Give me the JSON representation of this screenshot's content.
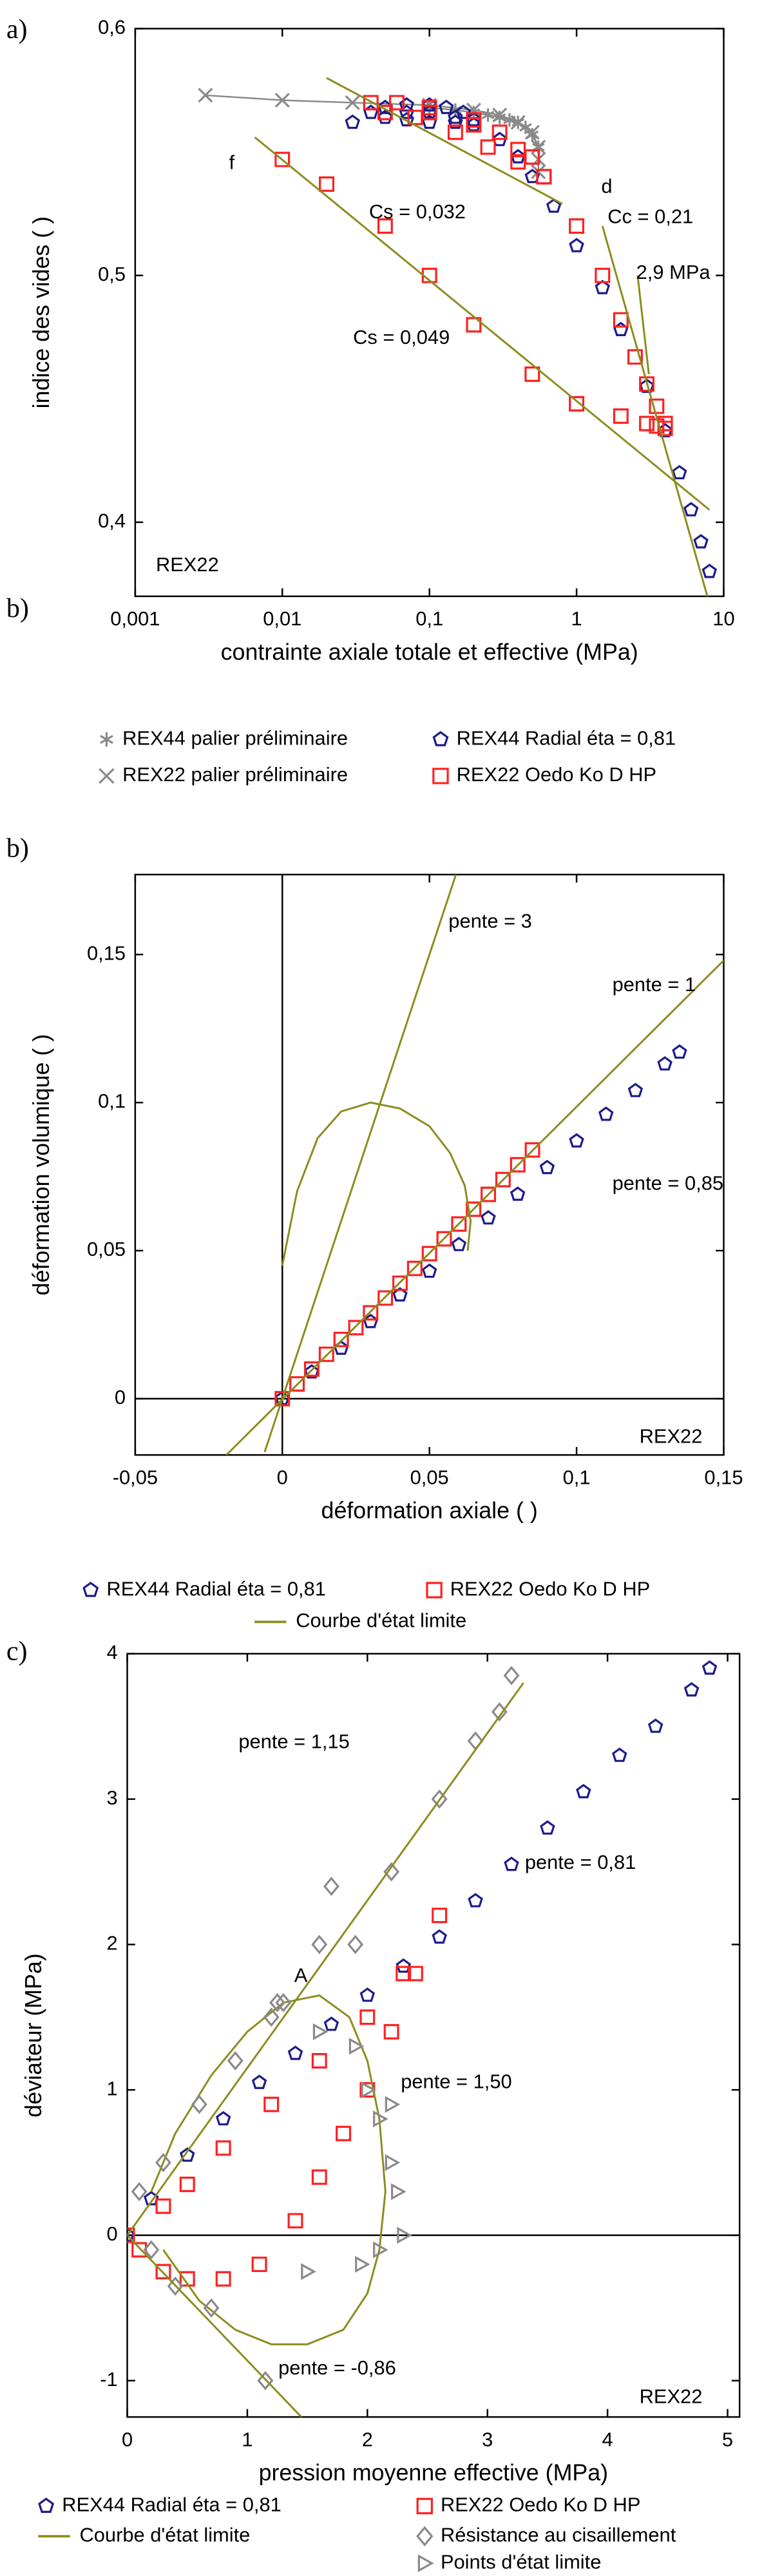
{
  "chart_data": [
    {
      "type": "scatter",
      "xscale": "log",
      "panel_labels": [
        "a)",
        "b)"
      ],
      "x_label": "contrainte axiale totale et effective (MPa)",
      "y_label": "indice des vides ( )",
      "xlim": [
        0.001,
        10
      ],
      "ylim": [
        0.37,
        0.6
      ],
      "xticks": [
        {
          "value": 0.001,
          "label": "0,001"
        },
        {
          "value": 0.01,
          "label": "0,01"
        },
        {
          "value": 0.1,
          "label": "0,1"
        },
        1,
        10
      ],
      "yticks": [
        {
          "value": 0.4,
          "label": "0,4"
        },
        {
          "value": 0.5,
          "label": "0,5"
        },
        {
          "value": 0.6,
          "label": "0,6"
        }
      ],
      "annotations": [
        "Cs = 0,032",
        "Cc = 0,21",
        "2,9 MPa",
        "Cs = 0,049",
        "f",
        "d",
        "REX22"
      ],
      "series": [
        {
          "name": "REX44 palier préliminaire",
          "color": "#8a8a8a",
          "marker": "star",
          "connect": true,
          "x": [
            0.1,
            0.15,
            0.2,
            0.25,
            0.3,
            0.35,
            0.4,
            0.45,
            0.5,
            0.55
          ],
          "values": [
            0.568,
            0.567,
            0.566,
            0.565,
            0.564,
            0.563,
            0.562,
            0.56,
            0.557,
            0.552
          ]
        },
        {
          "name": "REX22 palier préliminaire",
          "color": "#8a8a8a",
          "marker": "x",
          "connect": true,
          "x": [
            0.003,
            0.01,
            0.03,
            0.1,
            0.2,
            0.3,
            0.4,
            0.5,
            0.55,
            0.55,
            0.55
          ],
          "values": [
            0.573,
            0.571,
            0.57,
            0.569,
            0.567,
            0.565,
            0.562,
            0.558,
            0.552,
            0.547,
            0.542
          ]
        },
        {
          "name": "REX44 Radial  éta = 0,81",
          "color": "#1c1c8c",
          "marker": "pentagon",
          "x": [
            0.03,
            0.04,
            0.05,
            0.07,
            0.1,
            0.13,
            0.17,
            0.2,
            0.15,
            0.1,
            0.07,
            0.05,
            0.07,
            0.1,
            0.15,
            0.2,
            0.3,
            0.4,
            0.5,
            0.7,
            1,
            1.5,
            2,
            3,
            4,
            5,
            6,
            7,
            8
          ],
          "values": [
            0.562,
            0.566,
            0.568,
            0.569,
            0.569,
            0.568,
            0.566,
            0.563,
            0.562,
            0.562,
            0.563,
            0.564,
            0.566,
            0.566,
            0.564,
            0.561,
            0.555,
            0.548,
            0.54,
            0.528,
            0.512,
            0.495,
            0.478,
            0.455,
            0.437,
            0.42,
            0.405,
            0.392,
            0.38
          ]
        },
        {
          "name": "REX22 Oedo Ko D HP",
          "color": "#ff2020",
          "marker": "square",
          "x": [
            0.04,
            0.06,
            0.1,
            0.2,
            0.3,
            0.5,
            0.6,
            0.4,
            0.25,
            0.15,
            0.08,
            0.05,
            0.1,
            0.2,
            0.4,
            0.6,
            1,
            1.5,
            2,
            2.5,
            3,
            3.5,
            4,
            4,
            3.5,
            3,
            2,
            1,
            0.5,
            0.2,
            0.1,
            0.05,
            0.02,
            0.01
          ],
          "values": [
            0.57,
            0.57,
            0.568,
            0.563,
            0.558,
            0.548,
            0.54,
            0.546,
            0.552,
            0.558,
            0.564,
            0.566,
            0.566,
            0.561,
            0.551,
            0.54,
            0.52,
            0.5,
            0.482,
            0.467,
            0.456,
            0.447,
            0.44,
            0.438,
            0.439,
            0.44,
            0.443,
            0.448,
            0.46,
            0.48,
            0.5,
            0.52,
            0.537,
            0.547
          ]
        },
        {
          "color": "#8c8c1e",
          "line": true,
          "x": [
            0.0065,
            8
          ],
          "values": [
            0.556,
            0.405
          ]
        },
        {
          "color": "#8c8c1e",
          "line": true,
          "x": [
            0.02,
            0.8
          ],
          "values": [
            0.58,
            0.529
          ]
        },
        {
          "color": "#8c8c1e",
          "line": true,
          "x": [
            1.5,
            8
          ],
          "values": [
            0.52,
            0.367
          ]
        },
        {
          "color": "#8c8c1e",
          "line": true,
          "x": [
            2.6,
            3.1
          ],
          "values": [
            0.5,
            0.46
          ]
        }
      ]
    },
    {
      "type": "scatter",
      "panel_labels": [
        "b)"
      ],
      "origin_lines": true,
      "x_label": "déformation axiale ( )",
      "y_label": "déformation volumique ( )",
      "xlim": [
        -0.05,
        0.15
      ],
      "ylim": [
        -0.019,
        0.177
      ],
      "xticks": [
        {
          "value": -0.05,
          "label": "-0,05"
        },
        0,
        {
          "value": 0.05,
          "label": "0,05"
        },
        {
          "value": 0.1,
          "label": "0,1"
        },
        {
          "value": 0.15,
          "label": "0,15"
        }
      ],
      "yticks": [
        0,
        {
          "value": 0.05,
          "label": "0,05"
        },
        {
          "value": 0.1,
          "label": "0,1"
        },
        {
          "value": 0.15,
          "label": "0,15"
        }
      ],
      "annotations": [
        "pente = 3",
        "pente = 1",
        "pente = 0,85",
        "REX22"
      ],
      "series": [
        {
          "name": "REX44 Radial  éta = 0,81",
          "color": "#1c1c8c",
          "marker": "pentagon",
          "x": [
            0,
            0.01,
            0.02,
            0.03,
            0.04,
            0.05,
            0.06,
            0.07,
            0.08,
            0.09,
            0.1,
            0.11,
            0.12,
            0.13,
            0.135
          ],
          "values": [
            0,
            0.009,
            0.017,
            0.026,
            0.035,
            0.043,
            0.052,
            0.061,
            0.069,
            0.078,
            0.087,
            0.096,
            0.104,
            0.113,
            0.117
          ]
        },
        {
          "name": "REX22 Oedo Ko D HP",
          "color": "#ff2020",
          "marker": "square",
          "x": [
            0,
            0.005,
            0.01,
            0.015,
            0.02,
            0.025,
            0.03,
            0.035,
            0.04,
            0.045,
            0.05,
            0.055,
            0.06,
            0.065,
            0.07,
            0.075,
            0.08,
            0.085
          ],
          "values": [
            0,
            0.005,
            0.01,
            0.015,
            0.02,
            0.024,
            0.029,
            0.034,
            0.039,
            0.044,
            0.049,
            0.054,
            0.059,
            0.064,
            0.069,
            0.074,
            0.079,
            0.084
          ]
        },
        {
          "name": "Courbe d'état limite",
          "color": "#8c8c1e",
          "line": true,
          "x": [
            0,
            0.005,
            0.012,
            0.02,
            0.03,
            0.04,
            0.05,
            0.057,
            0.062,
            0.064,
            0.063
          ],
          "values": [
            0.045,
            0.07,
            0.088,
            0.097,
            0.1,
            0.098,
            0.092,
            0.083,
            0.072,
            0.06,
            0.05
          ]
        },
        {
          "color": "#8c8c1e",
          "line": true,
          "x": [
            -0.006,
            0.059
          ],
          "values": [
            -0.018,
            0.177
          ]
        },
        {
          "color": "#8c8c1e",
          "line": true,
          "x": [
            -0.019,
            0.15
          ],
          "values": [
            -0.019,
            0.148
          ]
        }
      ]
    },
    {
      "type": "scatter",
      "panel_labels": [
        "c)"
      ],
      "origin_lines": true,
      "x_label": "pression moyenne effective (MPa)",
      "y_label": "déviateur (MPa)",
      "xlim": [
        0,
        5.1
      ],
      "ylim": [
        -1.25,
        4
      ],
      "xticks": [
        0,
        1,
        2,
        3,
        4,
        5
      ],
      "yticks": [
        -1,
        0,
        1,
        2,
        3,
        4
      ],
      "annotations": [
        "pente = 1,15",
        "pente = 0,81",
        "pente = 1,50",
        "pente = -0,86",
        "A",
        "REX22"
      ],
      "series": [
        {
          "name": "REX44 Radial  éta = 0,81",
          "color": "#1c1c8c",
          "marker": "pentagon",
          "x": [
            0,
            0.2,
            0.5,
            0.8,
            1.1,
            1.4,
            1.7,
            2,
            2.3,
            2.6,
            2.9,
            3.2,
            3.5,
            3.8,
            4.1,
            4.4,
            4.7,
            4.85
          ],
          "values": [
            0,
            0.25,
            0.55,
            0.8,
            1.05,
            1.25,
            1.45,
            1.65,
            1.85,
            2.05,
            2.3,
            2.55,
            2.8,
            3.05,
            3.3,
            3.5,
            3.75,
            3.9
          ]
        },
        {
          "name": "REX22 Oedo Ko D HP",
          "color": "#ff2020",
          "marker": "square",
          "x": [
            0,
            0.1,
            0.3,
            0.5,
            0.8,
            1.1,
            1.4,
            1.6,
            1.8,
            2,
            2.2,
            2.4,
            2.6,
            2.3,
            2,
            1.6,
            1.2,
            0.8,
            0.5,
            0.3
          ],
          "values": [
            0,
            -0.1,
            -0.25,
            -0.3,
            -0.3,
            -0.2,
            0.1,
            0.4,
            0.7,
            1,
            1.4,
            1.8,
            2.2,
            1.8,
            1.5,
            1.2,
            0.9,
            0.6,
            0.35,
            0.2
          ]
        },
        {
          "name": "Courbe d'état limite",
          "color": "#8c8c1e",
          "line": true,
          "x": [
            0.2,
            0.4,
            0.7,
            1,
            1.3,
            1.6,
            1.85,
            2,
            2.1,
            2.15,
            2.1,
            2,
            1.8,
            1.5,
            1.2,
            0.9,
            0.6,
            0.3
          ],
          "values": [
            0.3,
            0.7,
            1.1,
            1.4,
            1.6,
            1.65,
            1.5,
            1.2,
            0.8,
            0.3,
            -0.1,
            -0.4,
            -0.65,
            -0.75,
            -0.75,
            -0.65,
            -0.45,
            -0.1
          ]
        },
        {
          "name": "Résistance au cisaillement",
          "color": "#8a8a8a",
          "marker": "diamond",
          "x": [
            0.1,
            0.3,
            0.6,
            0.9,
            1.2,
            1.25,
            1.3,
            1.6,
            1.7,
            1.9,
            2.2,
            2.6,
            2.9,
            3.1,
            3.2,
            0.2,
            0.4,
            0.7,
            1.15
          ],
          "values": [
            0.3,
            0.5,
            0.9,
            1.2,
            1.5,
            1.6,
            1.6,
            2,
            2.4,
            2,
            2.5,
            3,
            3.4,
            3.6,
            3.85,
            -0.1,
            -0.35,
            -0.5,
            -1
          ]
        },
        {
          "name": "Points d'état limite",
          "color": "#8a8a8a",
          "marker": "triangle",
          "x": [
            1.6,
            1.9,
            2,
            2.1,
            2.2,
            2.25,
            2.3,
            2.1,
            1.95,
            2.2,
            1.5
          ],
          "values": [
            1.4,
            1.3,
            1,
            0.8,
            0.5,
            0.3,
            0,
            -0.1,
            -0.2,
            0.9,
            -0.25
          ]
        },
        {
          "color": "#8c8c1e",
          "line": true,
          "x": [
            0,
            3.3
          ],
          "values": [
            0,
            3.8
          ]
        },
        {
          "color": "#8c8c1e",
          "line": true,
          "x": [
            0,
            1.45
          ],
          "values": [
            0,
            -1.25
          ]
        }
      ]
    }
  ]
}
